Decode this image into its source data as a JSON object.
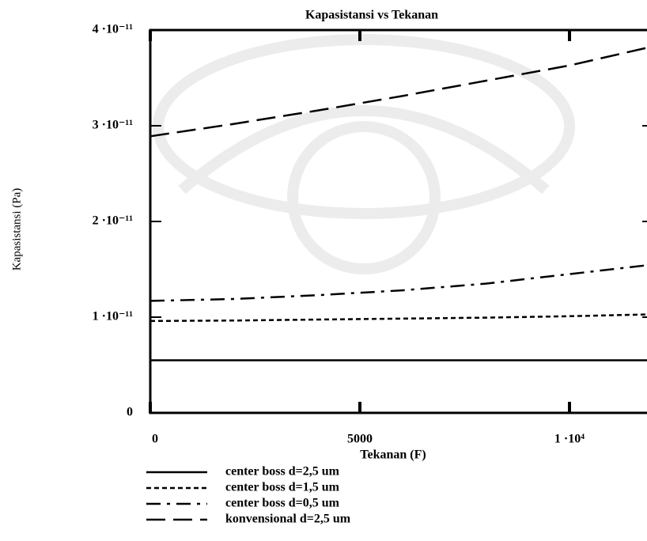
{
  "chart_data": {
    "type": "line",
    "title": "Kapasistansi vs Tekanan",
    "x_label": "Tekanan (F)",
    "y_label": "Kapasistansi (Pa)",
    "x": [
      0,
      2000,
      4000,
      6000,
      8000,
      10000,
      12000
    ],
    "series": [
      {
        "name": "center boss d=2,5 um",
        "color": "#000000",
        "values": [
          5.5e-12,
          5.5e-12,
          5.5e-12,
          5.5e-12,
          5.5e-12,
          5.5e-12,
          5.5e-12
        ]
      },
      {
        "name": "center boss d=1,5 um",
        "color": "#000000",
        "values": [
          9.6e-12,
          9.65e-12,
          9.75e-12,
          9.85e-12,
          9.95e-12,
          1.01e-11,
          1.03e-11
        ]
      },
      {
        "name": "center boss d=0,5 um",
        "color": "#000000",
        "values": [
          1.17e-11,
          1.19e-11,
          1.23e-11,
          1.28e-11,
          1.35e-11,
          1.45e-11,
          1.55e-11
        ]
      },
      {
        "name": "konvensional d=2,5 um",
        "color": "#000000",
        "values": [
          2.89e-11,
          3.02e-11,
          3.16e-11,
          3.31e-11,
          3.47e-11,
          3.63e-11,
          3.83e-11
        ]
      }
    ],
    "xlim": [
      0,
      12000
    ],
    "xticks": [
      0,
      5000,
      {
        "value": 10000,
        "label": "1 ·10⁴"
      }
    ],
    "ylim": [
      0,
      4e-11
    ],
    "yticks": [
      0,
      {
        "value": 1e-11,
        "label": "1 ·10⁻¹¹"
      },
      {
        "value": 2e-11,
        "label": "2 ·10⁻¹¹"
      },
      {
        "value": 3e-11,
        "label": "3 ·10⁻¹¹"
      },
      {
        "value": 4e-11,
        "label": "4 ·10⁻¹¹"
      }
    ],
    "grid": false
  }
}
